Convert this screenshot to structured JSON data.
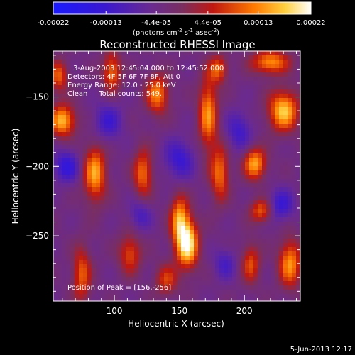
{
  "colorbar": {
    "tick_labels": [
      "-0.00022",
      "-0.00013",
      "-4.4e-05",
      "4.4e-05",
      "0.00013",
      "0.00022"
    ],
    "tick_values": [
      -0.00022,
      -0.00013,
      -4.4e-05,
      4.4e-05,
      0.00013,
      0.00022
    ],
    "range": [
      -0.00022,
      0.00022
    ],
    "units_text": "(photons cm",
    "units_sup1": "-2",
    "units_mid": " s",
    "units_sup2": "-1",
    "units_end": " asec",
    "units_sup3": "-2",
    "units_close": ")"
  },
  "chart_data": {
    "type": "heatmap",
    "title": "Reconstructed RHESSI Image",
    "xlabel": "Heliocentric X (arcsec)",
    "ylabel": "Heliocentric Y (arcsec)",
    "xlim": [
      53,
      243
    ],
    "ylim": [
      -297,
      -117
    ],
    "x_ticks": [
      100,
      150,
      200
    ],
    "y_ticks": [
      -150,
      -200,
      -250
    ],
    "annotations": {
      "time_range": "3-Aug-2003 12:45:04.000 to 12:45:52.000",
      "detectors": "Detectors: 4F 5F 6F 7F 8F, Att 0",
      "energy": "Energy Range: 12.0 - 25.0 keV",
      "clean": "Clean     Total counts: 549.",
      "peak": "Position of Peak = [156,-256]"
    },
    "peak": {
      "x": 156,
      "y": -256
    },
    "sources": [
      {
        "x": 156,
        "y": -256,
        "w": 1.0,
        "sx": 6,
        "sy": 12
      },
      {
        "x": 150,
        "y": -238,
        "w": 0.7,
        "sx": 5,
        "sy": 12
      },
      {
        "x": 60,
        "y": -167,
        "w": 0.8,
        "sx": 7,
        "sy": 8
      },
      {
        "x": 85,
        "y": -205,
        "w": 0.75,
        "sx": 6,
        "sy": 14
      },
      {
        "x": 75,
        "y": -278,
        "w": 0.55,
        "sx": 5,
        "sy": 14
      },
      {
        "x": 122,
        "y": -205,
        "w": 0.6,
        "sx": 5,
        "sy": 12
      },
      {
        "x": 133,
        "y": -148,
        "w": 0.65,
        "sx": 6,
        "sy": 10
      },
      {
        "x": 98,
        "y": -132,
        "w": 0.6,
        "sx": 5,
        "sy": 10
      },
      {
        "x": 172,
        "y": -162,
        "w": 0.7,
        "sx": 5,
        "sy": 18
      },
      {
        "x": 181,
        "y": -205,
        "w": 0.6,
        "sx": 5,
        "sy": 14
      },
      {
        "x": 208,
        "y": -198,
        "w": 0.75,
        "sx": 6,
        "sy": 8
      },
      {
        "x": 230,
        "y": -160,
        "w": 0.85,
        "sx": 8,
        "sy": 10
      },
      {
        "x": 220,
        "y": -125,
        "w": 0.7,
        "sx": 10,
        "sy": 6
      },
      {
        "x": 235,
        "y": -270,
        "w": 0.7,
        "sx": 6,
        "sy": 12
      },
      {
        "x": 205,
        "y": -270,
        "w": 0.5,
        "sx": 5,
        "sy": 10
      },
      {
        "x": 213,
        "y": -232,
        "w": 0.55,
        "sx": 6,
        "sy": 6
      },
      {
        "x": 112,
        "y": -263,
        "w": 0.5,
        "sx": 6,
        "sy": 10
      },
      {
        "x": 140,
        "y": -282,
        "w": 0.45,
        "sx": 6,
        "sy": 8
      },
      {
        "x": 180,
        "y": -130,
        "w": 0.55,
        "sx": 5,
        "sy": 7
      },
      {
        "x": 57,
        "y": -135,
        "w": 0.55,
        "sx": 5,
        "sy": 8
      },
      {
        "x": 63,
        "y": -200,
        "w": -0.45,
        "sx": 7,
        "sy": 8
      },
      {
        "x": 95,
        "y": -168,
        "w": -0.35,
        "sx": 8,
        "sy": 10
      },
      {
        "x": 150,
        "y": -195,
        "w": -0.4,
        "sx": 8,
        "sy": 10
      },
      {
        "x": 196,
        "y": -175,
        "w": -0.35,
        "sx": 7,
        "sy": 10
      },
      {
        "x": 228,
        "y": -228,
        "w": -0.4,
        "sx": 7,
        "sy": 8
      },
      {
        "x": 185,
        "y": -270,
        "w": -0.3,
        "sx": 6,
        "sy": 8
      },
      {
        "x": 120,
        "y": -235,
        "w": -0.3,
        "sx": 6,
        "sy": 8
      }
    ]
  },
  "footer": {
    "date": "5-Jun-2013 12:17"
  }
}
